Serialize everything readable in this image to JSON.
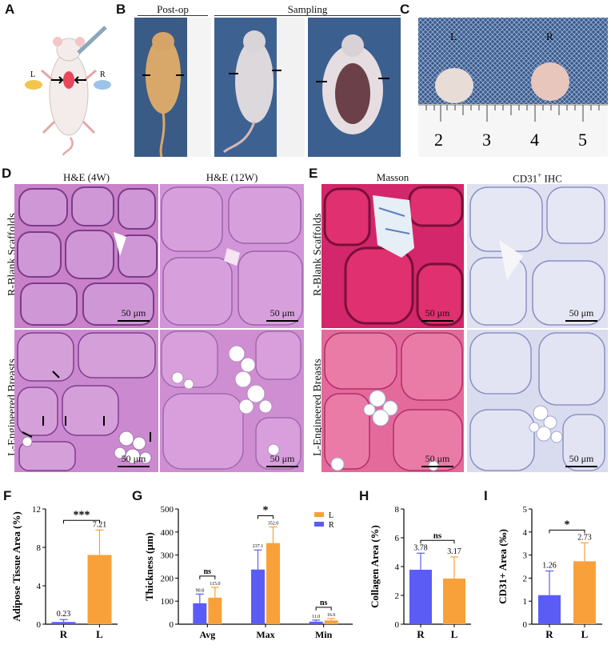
{
  "panels": {
    "A": {
      "letter": "A",
      "left_label": "L",
      "right_label": "R"
    },
    "B": {
      "letter": "B",
      "postop_label": "Post-op",
      "sampling_label": "Sampling"
    },
    "C": {
      "letter": "C",
      "left_label": "L",
      "right_label": "R",
      "ruler_numbers": [
        "2",
        "3",
        "4",
        "5"
      ]
    },
    "D": {
      "letter": "D",
      "col1": "H&E (4W)",
      "col2": "H&E (12W)",
      "row1": "R-Blank Scaffolds",
      "row2": "L-Engineered Breasts",
      "scale": "50 μm"
    },
    "E": {
      "letter": "E",
      "col1": "Masson",
      "col2_main": "CD31",
      "col2_sup": "+",
      "col2_tail": " IHC",
      "row1": "R-Blank Scaffolds",
      "row2": "L-Engineered Breasts",
      "scale": "50 μm"
    },
    "F": {
      "letter": "F"
    },
    "G": {
      "letter": "G"
    },
    "H": {
      "letter": "H"
    },
    "I": {
      "letter": "I"
    }
  },
  "colors": {
    "R": "#5b5cf6",
    "L": "#f8a13a"
  },
  "chart_data": [
    {
      "id": "F",
      "type": "bar",
      "ylabel": "Adipose Tissue Area (%)",
      "categories": [
        "R",
        "L"
      ],
      "values": [
        0.23,
        7.21
      ],
      "errors": [
        0.25,
        2.6
      ],
      "value_labels": [
        "0.23",
        "7.21"
      ],
      "ylim": [
        0,
        12
      ],
      "yticks": [
        "0",
        "4",
        "8",
        "12"
      ],
      "significance": "***"
    },
    {
      "id": "G",
      "type": "bar",
      "ylabel": "Thickness (μm)",
      "categories": [
        "Avg",
        "Max",
        "Min"
      ],
      "series": [
        {
          "name": "R",
          "values": [
            90.8,
            237.1,
            11.0
          ],
          "errors": [
            40,
            85,
            7
          ],
          "labels": [
            "90.8",
            "237.1",
            "11.0"
          ]
        },
        {
          "name": "L",
          "values": [
            115.0,
            352.0,
            16.6
          ],
          "errors": [
            45,
            70,
            8
          ],
          "labels": [
            "115.0",
            "352.0",
            "16.6"
          ]
        }
      ],
      "ylim": [
        0,
        500
      ],
      "yticks": [
        "0",
        "100",
        "200",
        "300",
        "400",
        "500"
      ],
      "significance": [
        "ns",
        "*",
        "ns"
      ],
      "legend": [
        "L",
        "R"
      ]
    },
    {
      "id": "H",
      "type": "bar",
      "ylabel": "Collagen Area (%)",
      "categories": [
        "R",
        "L"
      ],
      "values": [
        3.78,
        3.17
      ],
      "errors": [
        1.15,
        1.5
      ],
      "value_labels": [
        "3.78",
        "3.17"
      ],
      "ylim": [
        0,
        8
      ],
      "yticks": [
        "0",
        "2",
        "4",
        "6",
        "8"
      ],
      "significance": "ns"
    },
    {
      "id": "I",
      "type": "bar",
      "ylabel": "CD31+ Area (‰)",
      "categories": [
        "R",
        "L"
      ],
      "values": [
        1.26,
        2.73
      ],
      "errors": [
        1.05,
        0.8
      ],
      "value_labels": [
        "1.26",
        "2.73"
      ],
      "ylim": [
        0,
        5
      ],
      "yticks": [
        "0",
        "1",
        "2",
        "3",
        "4",
        "5"
      ],
      "significance": "*"
    }
  ]
}
